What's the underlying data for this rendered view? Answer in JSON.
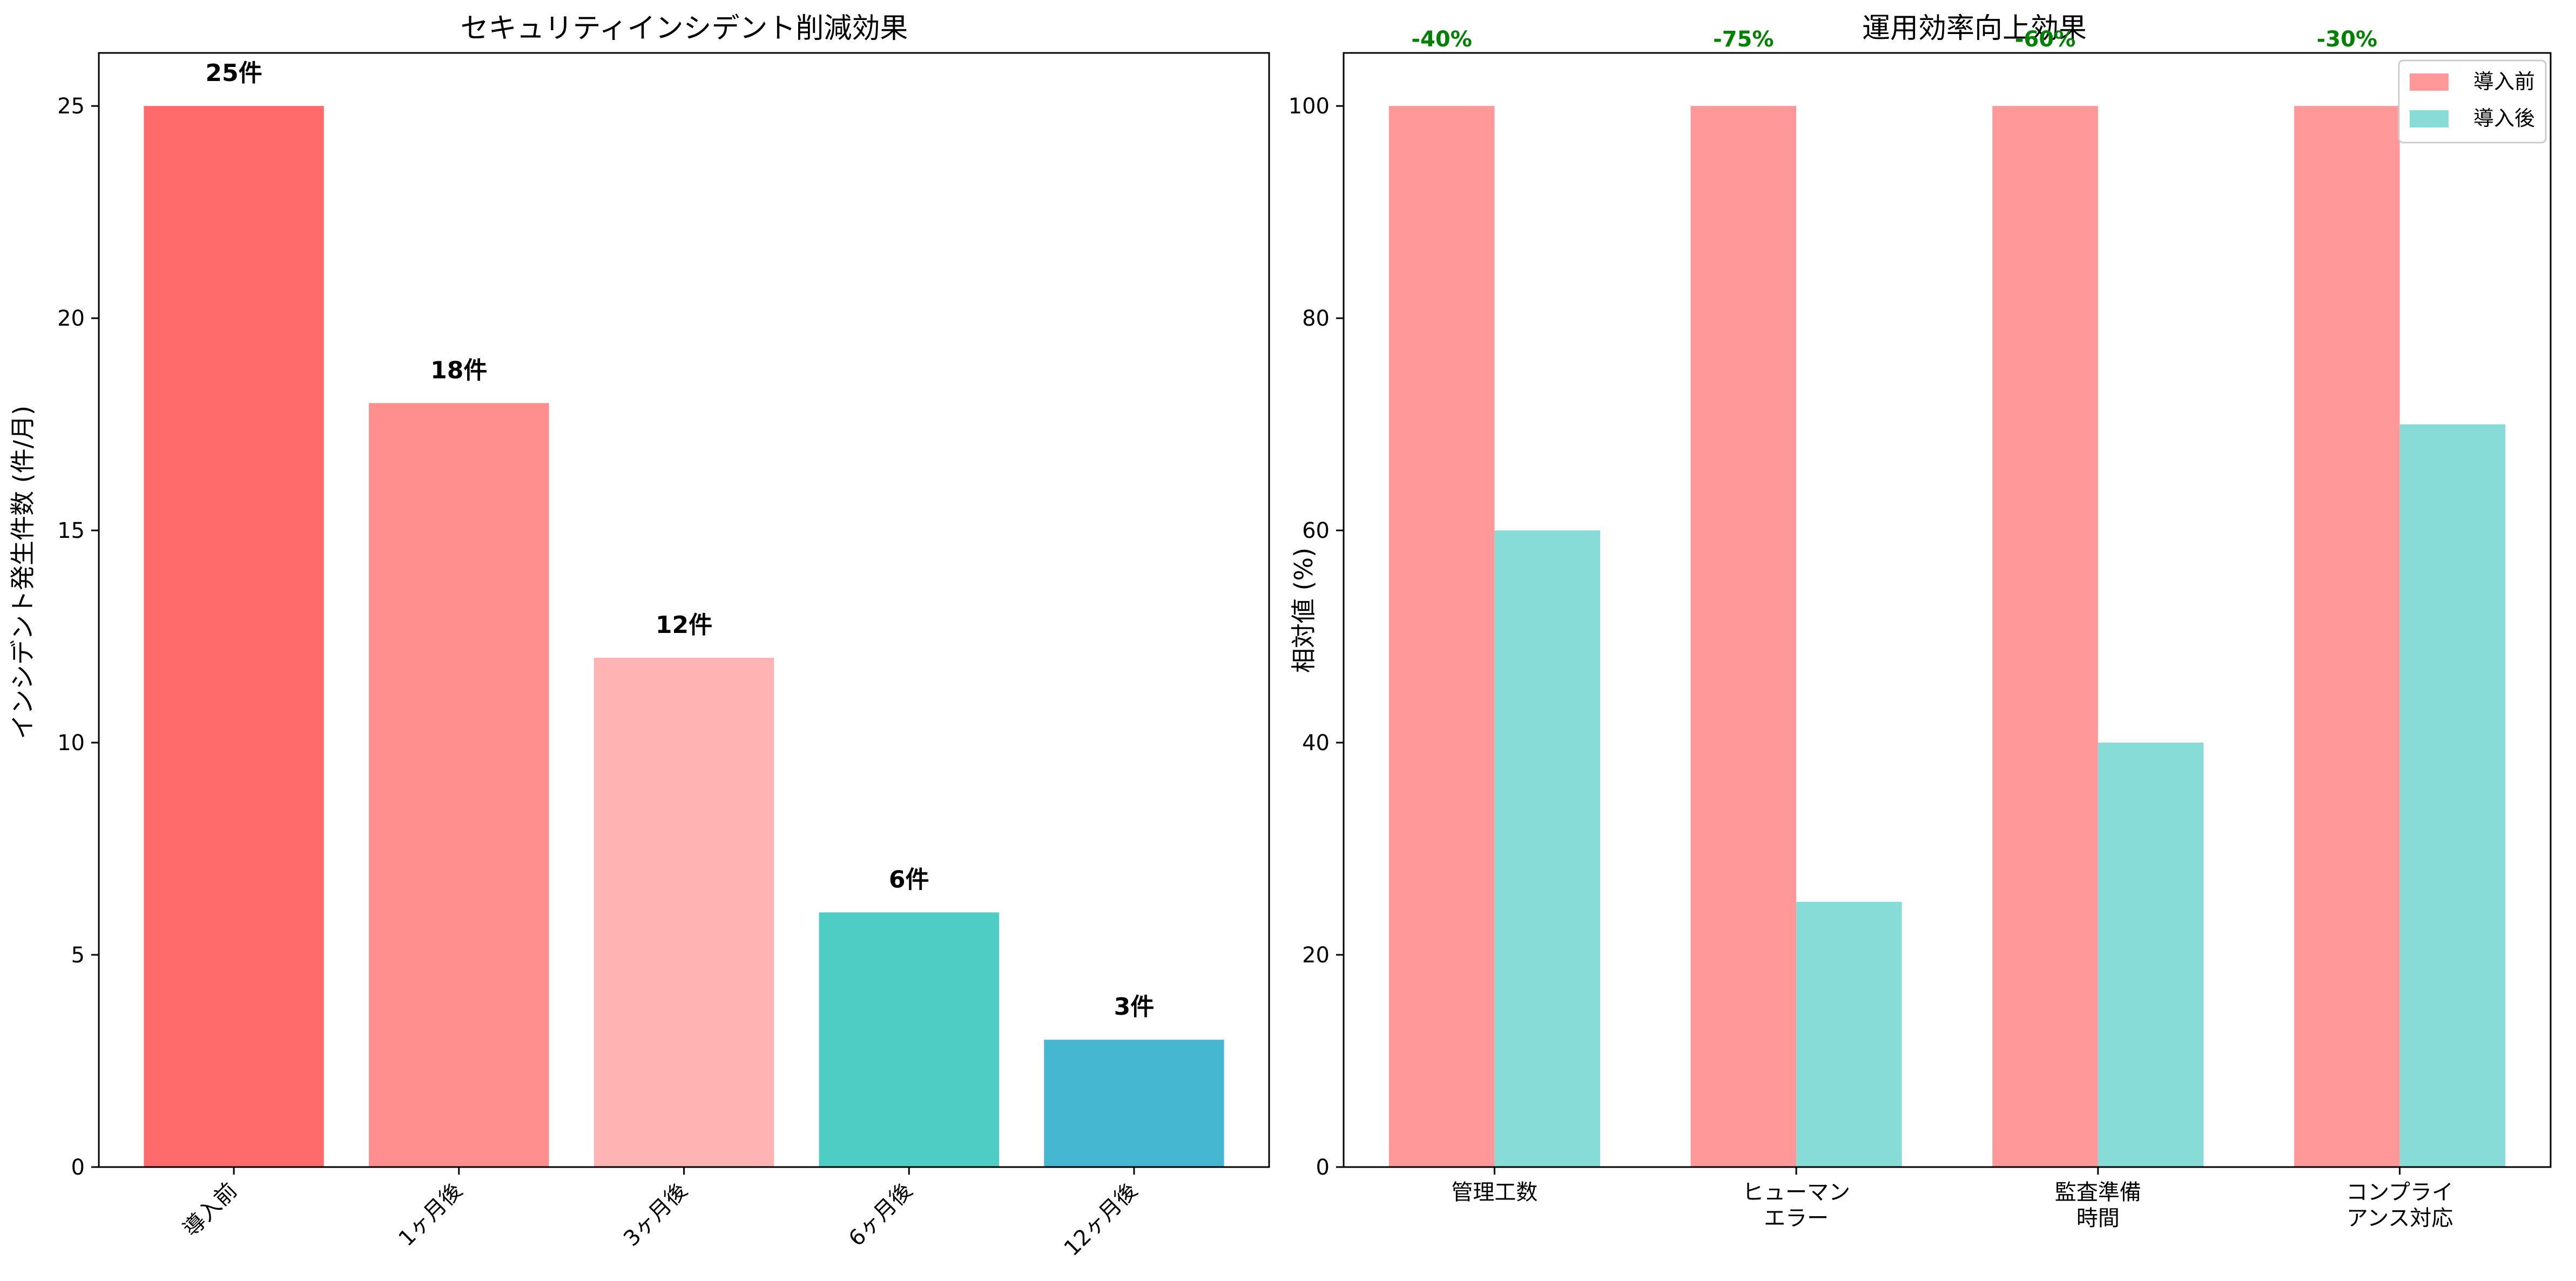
{
  "chart_data": [
    {
      "type": "bar",
      "title": "セキュリティインシデント削減効果",
      "xlabel": "",
      "ylabel": "インシデント発生件数 (件/月)",
      "categories": [
        "導入前",
        "1ヶ月後",
        "3ヶ月後",
        "6ヶ月後",
        "12ヶ月後"
      ],
      "values": [
        25,
        18,
        12,
        6,
        3
      ],
      "value_labels": [
        "25件",
        "18件",
        "12件",
        "6件",
        "3件"
      ],
      "bar_colors": [
        "#FF6B6B",
        "#FF8E8E",
        "#FFB3B3",
        "#4ECDC4",
        "#45B7D1"
      ],
      "ylim": [
        0,
        26.25
      ],
      "yticks": [
        0,
        5,
        10,
        15,
        20,
        25
      ],
      "grid": false
    },
    {
      "type": "bar",
      "title": "運用効率向上効果",
      "xlabel": "",
      "ylabel": "相対値 (%)",
      "categories": [
        "管理工数",
        "ヒューマン\nエラー",
        "監査準備\n時間",
        "コンプライ\nアンス対応"
      ],
      "series": [
        {
          "name": "導入前",
          "values": [
            100,
            100,
            100,
            100
          ],
          "color": "#FF9999"
        },
        {
          "name": "導入後",
          "values": [
            60,
            25,
            40,
            70
          ],
          "color": "#87DCD7"
        }
      ],
      "annotations": [
        "-40%",
        "-75%",
        "-60%",
        "-30%"
      ],
      "annotation_color": "#008000",
      "ylim": [
        0,
        105
      ],
      "yticks": [
        0,
        20,
        40,
        60,
        80,
        100
      ],
      "legend": "top-right",
      "grid": false
    }
  ]
}
